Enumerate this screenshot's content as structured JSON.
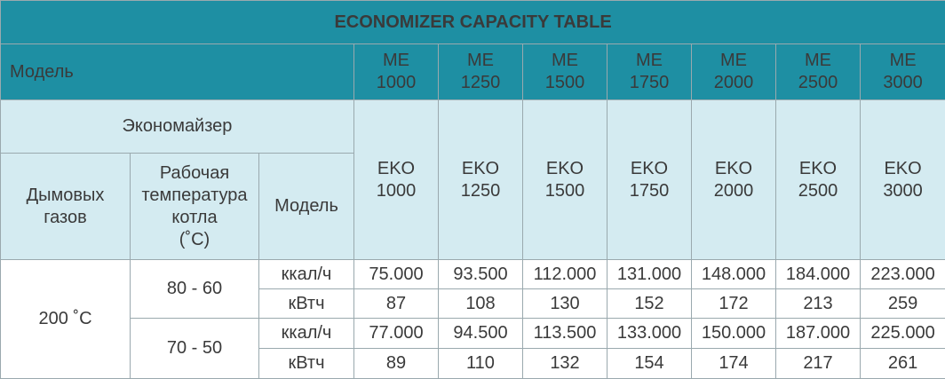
{
  "title": "ECONOMIZER CAPACITY TABLE",
  "model_label": "Модель",
  "models": [
    {
      "prefix": "ME",
      "number": "1000"
    },
    {
      "prefix": "ME",
      "number": "1250"
    },
    {
      "prefix": "ME",
      "number": "1500"
    },
    {
      "prefix": "ME",
      "number": "1750"
    },
    {
      "prefix": "ME",
      "number": "2000"
    },
    {
      "prefix": "ME",
      "number": "2500"
    },
    {
      "prefix": "ME",
      "number": "3000"
    }
  ],
  "economizer_label": "Экономайзер",
  "flue_gas_label": [
    "Дымовых",
    "газов"
  ],
  "boiler_temp_label": [
    "Рабочая",
    "температура",
    "котла",
    "(˚C)"
  ],
  "model_sub_label": "Модель",
  "eko_models": [
    {
      "prefix": "EKO",
      "number": "1000"
    },
    {
      "prefix": "EKO",
      "number": "1250"
    },
    {
      "prefix": "EKO",
      "number": "1500"
    },
    {
      "prefix": "EKO",
      "number": "1750"
    },
    {
      "prefix": "EKO",
      "number": "2000"
    },
    {
      "prefix": "EKO",
      "number": "2500"
    },
    {
      "prefix": "EKO",
      "number": "3000"
    }
  ],
  "flue_gas_temp": "200 ˚C",
  "groups": [
    {
      "range": "80 - 60",
      "rows": [
        {
          "unit": "ккал/ч",
          "values": [
            "75.000",
            "93.500",
            "112.000",
            "131.000",
            "148.000",
            "184.000",
            "223.000"
          ]
        },
        {
          "unit": "кВтч",
          "values": [
            "87",
            "108",
            "130",
            "152",
            "172",
            "213",
            "259"
          ]
        }
      ]
    },
    {
      "range": "70 - 50",
      "rows": [
        {
          "unit": "ккал/ч",
          "values": [
            "77.000",
            "94.500",
            "113.500",
            "133.000",
            "150.000",
            "187.000",
            "225.000"
          ]
        },
        {
          "unit": "кВтч",
          "values": [
            "89",
            "110",
            "132",
            "154",
            "174",
            "217",
            "261"
          ]
        }
      ]
    }
  ]
}
